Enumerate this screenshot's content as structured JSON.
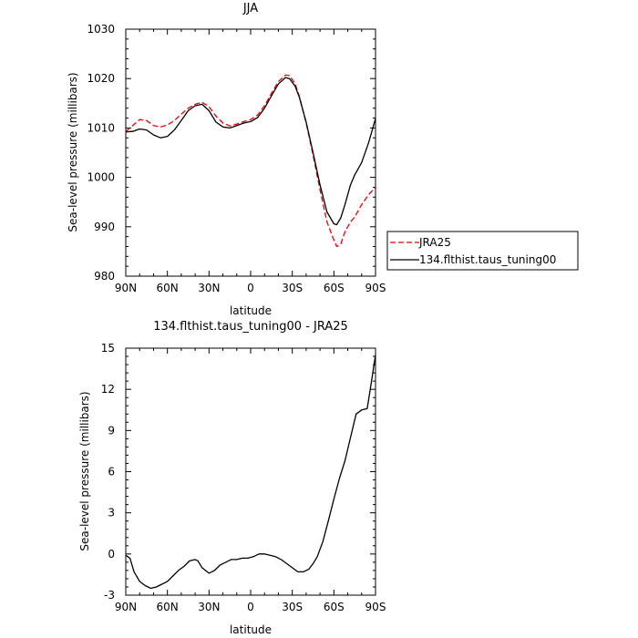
{
  "chart_data": [
    {
      "type": "line",
      "title": "JJA",
      "xlabel": "latitude",
      "ylabel": "Sea-level pressure (millibars)",
      "xlim": [
        90,
        -90
      ],
      "ylim": [
        980,
        1030
      ],
      "x_ticks": [
        90,
        60,
        30,
        0,
        -30,
        -60,
        -90
      ],
      "x_tick_labels": [
        "90N",
        "60N",
        "30N",
        "0",
        "30S",
        "60S",
        "90S"
      ],
      "y_ticks": [
        980,
        990,
        1000,
        1010,
        1020,
        1030
      ],
      "y_tick_labels": [
        "980",
        "990",
        "1000",
        "1010",
        "1020",
        "1030"
      ],
      "grid": false,
      "legend": "right",
      "x": [
        90,
        85,
        80,
        75,
        70,
        65,
        60,
        55,
        50,
        45,
        40,
        35,
        30,
        25,
        20,
        15,
        10,
        5,
        0,
        -5,
        -10,
        -15,
        -20,
        -25,
        -28,
        -32,
        -35,
        -40,
        -45,
        -50,
        -55,
        -60,
        -62,
        -65,
        -68,
        -72,
        -75,
        -80,
        -85,
        -90
      ],
      "series": [
        {
          "name": "JRA25",
          "color": "#e8000b",
          "dash": "dashed",
          "values": [
            1009.3,
            1010.5,
            1011.7,
            1011.5,
            1010.5,
            1010.2,
            1010.6,
            1011.5,
            1012.8,
            1014.0,
            1014.8,
            1015.2,
            1014.3,
            1012.4,
            1011.0,
            1010.4,
            1010.8,
            1011.3,
            1011.7,
            1012.6,
            1014.5,
            1017.0,
            1019.4,
            1020.7,
            1020.6,
            1019.0,
            1016.5,
            1011.0,
            1004.5,
            997.5,
            991.0,
            987.3,
            986.0,
            986.5,
            989.0,
            991.0,
            992.0,
            994.5,
            996.5,
            998.0
          ]
        },
        {
          "name": "134.flthist.taus_tuning00",
          "color": "#000000",
          "dash": "solid",
          "values": [
            1009.2,
            1009.3,
            1009.8,
            1009.6,
            1008.6,
            1008.0,
            1008.3,
            1009.6,
            1011.5,
            1013.5,
            1014.5,
            1014.8,
            1013.5,
            1011.2,
            1010.2,
            1010.0,
            1010.5,
            1011.0,
            1011.3,
            1012.1,
            1014.0,
            1016.5,
            1018.9,
            1020.2,
            1020.0,
            1018.5,
            1016.3,
            1011.2,
            1005.0,
            998.5,
            993.0,
            990.6,
            990.4,
            991.8,
            994.5,
            998.5,
            1000.5,
            1003.0,
            1007.0,
            1011.9
          ]
        }
      ]
    },
    {
      "type": "line",
      "title": "134.flthist.taus_tuning00 - JRA25",
      "xlabel": "latitude",
      "ylabel": "Sea-level pressure (millibars)",
      "xlim": [
        90,
        -90
      ],
      "ylim": [
        -3,
        15
      ],
      "x_ticks": [
        90,
        60,
        30,
        0,
        -30,
        -60,
        -90
      ],
      "x_tick_labels": [
        "90N",
        "60N",
        "30N",
        "0",
        "30S",
        "60S",
        "90S"
      ],
      "y_ticks": [
        -3,
        0,
        3,
        6,
        9,
        12,
        15
      ],
      "y_tick_labels": [
        "-3",
        "0",
        "3",
        "6",
        "9",
        "12",
        "15"
      ],
      "grid": false,
      "x": [
        90,
        87,
        84,
        80,
        76,
        72,
        68,
        64,
        60,
        56,
        52,
        48,
        44,
        40,
        38,
        35,
        30,
        26,
        22,
        18,
        14,
        10,
        6,
        2,
        -2,
        -6,
        -10,
        -14,
        -18,
        -22,
        -26,
        -30,
        -34,
        -38,
        -42,
        -45,
        -48,
        -52,
        -56,
        -60,
        -64,
        -68,
        -72,
        -76,
        -80,
        -84,
        -87,
        -90
      ],
      "series": [
        {
          "color": "#000000",
          "dash": "solid",
          "values": [
            -0.1,
            -0.3,
            -1.3,
            -2.0,
            -2.3,
            -2.5,
            -2.4,
            -2.2,
            -2.0,
            -1.6,
            -1.2,
            -0.9,
            -0.5,
            -0.4,
            -0.5,
            -1.0,
            -1.4,
            -1.2,
            -0.8,
            -0.6,
            -0.4,
            -0.4,
            -0.3,
            -0.3,
            -0.2,
            0.0,
            0.0,
            -0.1,
            -0.2,
            -0.4,
            -0.7,
            -1.0,
            -1.3,
            -1.3,
            -1.1,
            -0.7,
            -0.2,
            0.9,
            2.4,
            4.0,
            5.5,
            6.8,
            8.5,
            10.2,
            10.5,
            10.6,
            12.5,
            14.5
          ]
        }
      ]
    }
  ]
}
